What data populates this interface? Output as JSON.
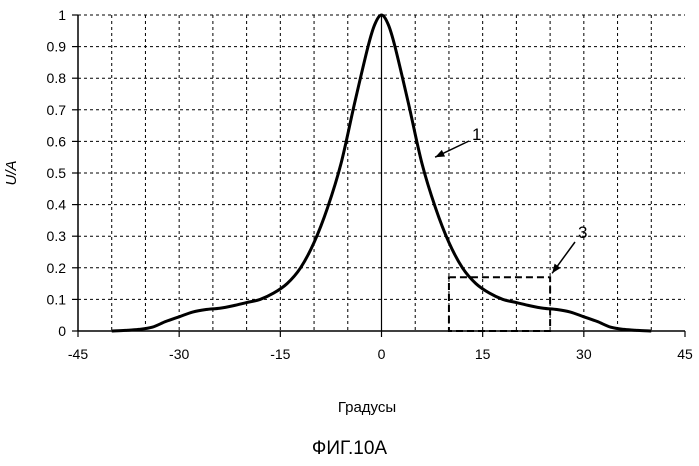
{
  "chart_data": {
    "type": "line",
    "xlabel": "Градусы",
    "ylabel": "U/A",
    "xlim": [
      -45,
      45
    ],
    "ylim": [
      0,
      1
    ],
    "xticks": [
      -45,
      -30,
      -15,
      0,
      15,
      30,
      45
    ],
    "yticks": [
      0,
      0.1,
      0.2,
      0.3,
      0.4,
      0.5,
      0.6,
      0.7,
      0.8,
      0.9,
      1
    ],
    "grid": true,
    "grid_style": "dashed",
    "x_grid_step": 5,
    "series": [
      {
        "x": [
          -40,
          -38,
          -36,
          -34,
          -32,
          -30,
          -28,
          -26,
          -24,
          -22,
          -20,
          -18,
          -16,
          -14,
          -12,
          -10,
          -8,
          -6,
          -4,
          -2,
          -1,
          0,
          1,
          2,
          4,
          6,
          8,
          10,
          12,
          14,
          16,
          18,
          20,
          22,
          24,
          26,
          28,
          30,
          32,
          34,
          36,
          38,
          40
        ],
        "values": [
          0,
          0.002,
          0.005,
          0.012,
          0.03,
          0.045,
          0.06,
          0.068,
          0.072,
          0.08,
          0.09,
          0.1,
          0.12,
          0.15,
          0.2,
          0.28,
          0.39,
          0.53,
          0.72,
          0.9,
          0.97,
          1.0,
          0.97,
          0.9,
          0.72,
          0.53,
          0.39,
          0.28,
          0.2,
          0.15,
          0.12,
          0.1,
          0.09,
          0.08,
          0.072,
          0.068,
          0.06,
          0.045,
          0.03,
          0.012,
          0.005,
          0.002,
          0
        ],
        "color": "#000000"
      }
    ],
    "annotations": [
      {
        "label": "1",
        "points_to": [
          7.5,
          0.55
        ]
      },
      {
        "label": "3",
        "points_to": [
          25,
          0.17
        ]
      }
    ],
    "highlight_box": {
      "x": [
        10,
        25
      ],
      "y": [
        0,
        0.17
      ]
    }
  },
  "caption": "ФИГ.10А"
}
